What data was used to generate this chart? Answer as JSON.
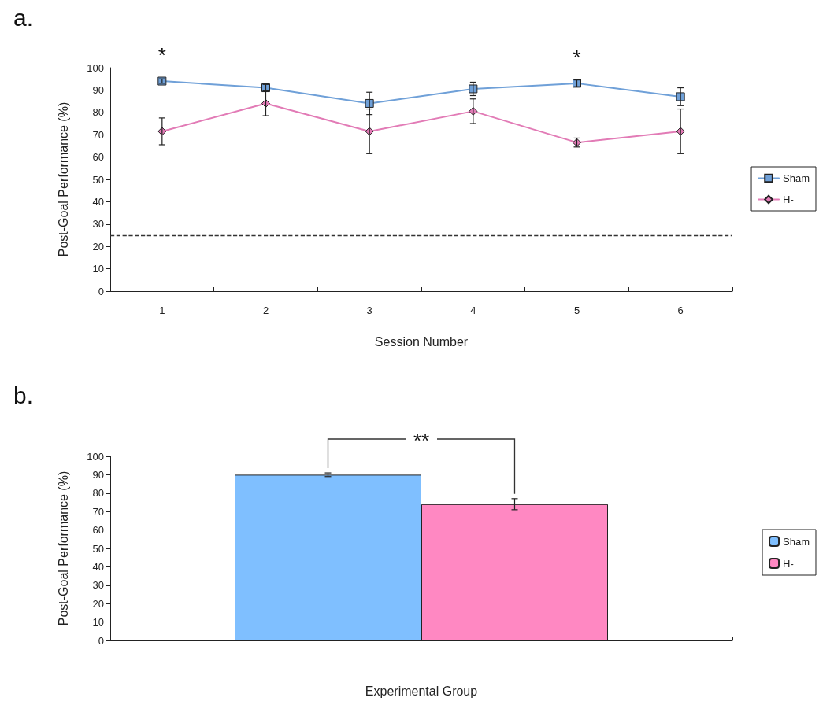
{
  "chart_data": [
    {
      "type": "line",
      "title": "a.",
      "xlabel": "Session Number",
      "ylabel": "Post-Goal Performance (%)",
      "categories": [
        "1",
        "2",
        "3",
        "4",
        "5",
        "6"
      ],
      "series": [
        {
          "name": "Sham",
          "color": "#6fa0d8",
          "marker": "square",
          "values": [
            94,
            91,
            84,
            90.5,
            93,
            87
          ],
          "errors": [
            1,
            1.5,
            5,
            3,
            1.5,
            4
          ]
        },
        {
          "name": "H-",
          "color": "#e27bb6",
          "marker": "diamond",
          "values": [
            71.5,
            84,
            71.5,
            80.5,
            66.5,
            71.5
          ],
          "errors": [
            6,
            5.5,
            10,
            5.5,
            2,
            10
          ]
        }
      ],
      "ylim": [
        0,
        100
      ],
      "yticks": [
        0,
        10,
        20,
        30,
        40,
        50,
        60,
        70,
        80,
        90,
        100
      ],
      "grid": false,
      "legend": "right",
      "ref_lines": [
        {
          "axis": "y",
          "value": 25,
          "line_style": "dashed",
          "color": "#333333"
        }
      ],
      "annotations": [
        {
          "text": "*",
          "x": "1",
          "y": 94
        },
        {
          "text": "*",
          "x": "5",
          "y": 93
        }
      ]
    },
    {
      "type": "bar",
      "title": "b.",
      "xlabel": "Experimental Group",
      "ylabel": "Post-Goal Performance (%)",
      "categories": [
        null
      ],
      "series": [
        {
          "name": "Sham",
          "color": "#7fbfff",
          "values": [
            90
          ],
          "errors": [
            1
          ]
        },
        {
          "name": "H-",
          "color": "#ff88c2",
          "values": [
            74
          ],
          "errors": [
            3
          ]
        }
      ],
      "ylim": [
        0,
        100
      ],
      "yticks": [
        0,
        10,
        20,
        30,
        40,
        50,
        60,
        70,
        80,
        90,
        100
      ],
      "grid": false,
      "legend": "right",
      "annotations": [
        "**"
      ]
    }
  ]
}
